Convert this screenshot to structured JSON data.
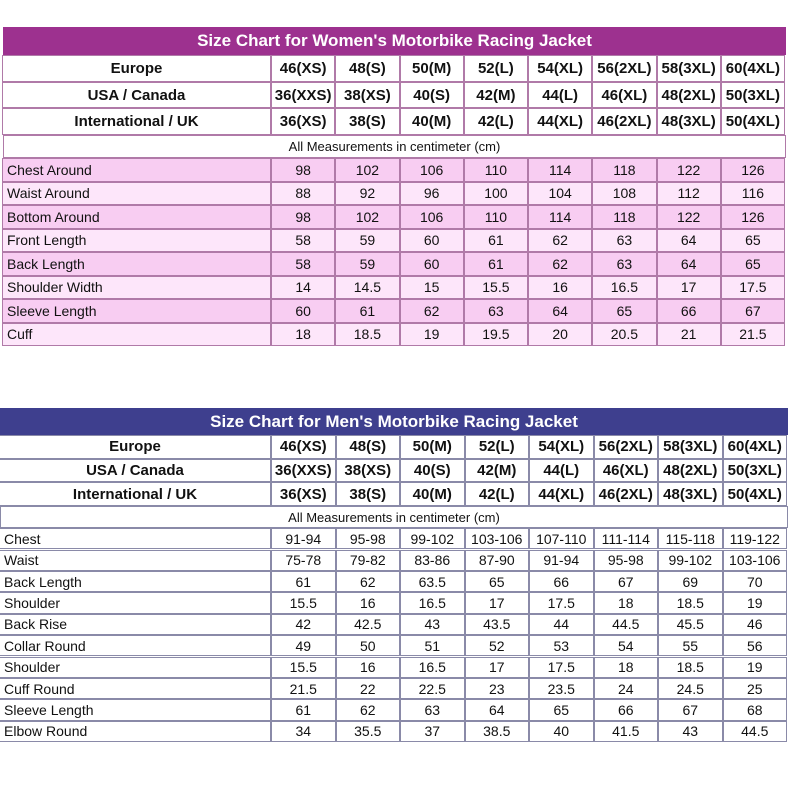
{
  "women": {
    "title": "Size Chart for Women's Motorbike Racing Jacket",
    "sizes": [
      [
        "Europe",
        "46(XS)",
        "48(S)",
        "50(M)",
        "52(L)",
        "54(XL)",
        "56(2XL)",
        "58(3XL)",
        "60(4XL)"
      ],
      [
        "USA / Canada",
        "36(XXS)",
        "38(XS)",
        "40(S)",
        "42(M)",
        "44(L)",
        "46(XL)",
        "48(2XL)",
        "50(3XL)"
      ],
      [
        "International / UK",
        "36(XS)",
        "38(S)",
        "40(M)",
        "42(L)",
        "44(XL)",
        "46(2XL)",
        "48(3XL)",
        "50(4XL)"
      ]
    ],
    "note": "All Measurements in centimeter (cm)",
    "rows": [
      [
        "Chest Around",
        "98",
        "102",
        "106",
        "110",
        "114",
        "118",
        "122",
        "126"
      ],
      [
        "Waist Around",
        "88",
        "92",
        "96",
        "100",
        "104",
        "108",
        "112",
        "116"
      ],
      [
        "Bottom Around",
        "98",
        "102",
        "106",
        "110",
        "114",
        "118",
        "122",
        "126"
      ],
      [
        "Front Length",
        "58",
        "59",
        "60",
        "61",
        "62",
        "63",
        "64",
        "65"
      ],
      [
        "Back Length",
        "58",
        "59",
        "60",
        "61",
        "62",
        "63",
        "64",
        "65"
      ],
      [
        "Shoulder Width",
        "14",
        "14.5",
        "15",
        "15.5",
        "16",
        "16.5",
        "17",
        "17.5"
      ],
      [
        "Sleeve Length",
        "60",
        "61",
        "62",
        "63",
        "64",
        "65",
        "66",
        "67"
      ],
      [
        "Cuff",
        "18",
        "18.5",
        "19",
        "19.5",
        "20",
        "20.5",
        "21",
        "21.5"
      ]
    ]
  },
  "men": {
    "title": "Size Chart for Men's Motorbike Racing Jacket",
    "sizes": [
      [
        "Europe",
        "46(XS)",
        "48(S)",
        "50(M)",
        "52(L)",
        "54(XL)",
        "56(2XL)",
        "58(3XL)",
        "60(4XL)"
      ],
      [
        "USA / Canada",
        "36(XXS)",
        "38(XS)",
        "40(S)",
        "42(M)",
        "44(L)",
        "46(XL)",
        "48(2XL)",
        "50(3XL)"
      ],
      [
        "International / UK",
        "36(XS)",
        "38(S)",
        "40(M)",
        "42(L)",
        "44(XL)",
        "46(2XL)",
        "48(3XL)",
        "50(4XL)"
      ]
    ],
    "note": "All Measurements in centimeter (cm)",
    "rows": [
      [
        "Chest",
        "91-94",
        "95-98",
        "99-102",
        "103-106",
        "107-110",
        "111-114",
        "115-118",
        "119-122"
      ],
      [
        "Waist",
        "75-78",
        "79-82",
        "83-86",
        "87-90",
        "91-94",
        "95-98",
        "99-102",
        "103-106"
      ],
      [
        "Back Length",
        "61",
        "62",
        "63.5",
        "65",
        "66",
        "67",
        "69",
        "70"
      ],
      [
        "Shoulder",
        "15.5",
        "16",
        "16.5",
        "17",
        "17.5",
        "18",
        "18.5",
        "19"
      ],
      [
        "Back Rise",
        "42",
        "42.5",
        "43",
        "43.5",
        "44",
        "44.5",
        "45.5",
        "46"
      ],
      [
        "Collar Round",
        "49",
        "50",
        "51",
        "52",
        "53",
        "54",
        "55",
        "56"
      ],
      [
        "Shoulder",
        "15.5",
        "16",
        "16.5",
        "17",
        "17.5",
        "18",
        "18.5",
        "19"
      ],
      [
        "Cuff Round",
        "21.5",
        "22",
        "22.5",
        "23",
        "23.5",
        "24",
        "24.5",
        "25"
      ],
      [
        "Sleeve Length",
        "61",
        "62",
        "63",
        "64",
        "65",
        "66",
        "67",
        "68"
      ],
      [
        "Elbow Round",
        "34",
        "35.5",
        "37",
        "38.5",
        "40",
        "41.5",
        "43",
        "44.5"
      ]
    ]
  }
}
